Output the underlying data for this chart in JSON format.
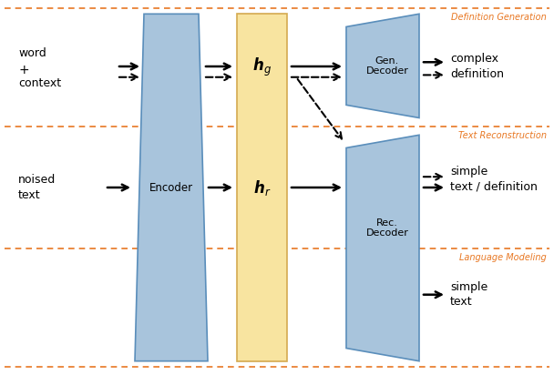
{
  "bg_color": "#ffffff",
  "orange_color": "#E87722",
  "blue_color": "#A8C4DC",
  "blue_edge": "#5A8EBB",
  "yellow_color": "#F8E4A0",
  "yellow_border": "#D4AA50",
  "section_labels": [
    "Definition Generation",
    "Text Reconstruction",
    "Language Modeling"
  ],
  "encoder_label": "Encoder",
  "hg_label": "$\\boldsymbol{h}_g$",
  "hr_label": "$\\boldsymbol{h}_r$",
  "gen_decoder_label": "Gen.\nDecoder",
  "rec_decoder_label": "Rec.\nDecoder"
}
